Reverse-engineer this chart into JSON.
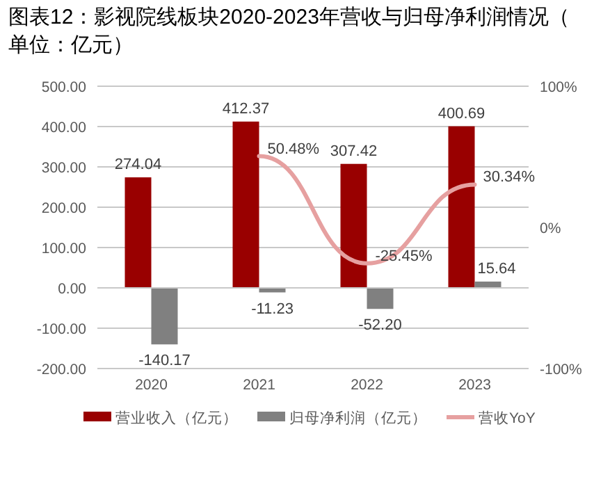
{
  "chart_data": {
    "type": "bar",
    "title": "图表12：影视院线板块2020-2023年营收与归母净利润情况（单位：亿元）",
    "categories": [
      "2020",
      "2021",
      "2022",
      "2023"
    ],
    "series": [
      {
        "name": "营业收入（亿元）",
        "color": "#990000",
        "values": [
          274.04,
          412.37,
          307.42,
          400.69
        ],
        "value_labels": [
          "274.04",
          "412.37",
          "307.42",
          "400.69"
        ]
      },
      {
        "name": "归母净利润（亿元）",
        "color": "#808080",
        "values": [
          -140.17,
          -11.23,
          -52.2,
          15.64
        ],
        "value_labels": [
          "-140.17",
          "-11.23",
          "-52.20",
          "15.64"
        ]
      },
      {
        "name": "营收YoY",
        "type": "line",
        "axis": "y2",
        "color": "#e6a0a0",
        "values": [
          null,
          50.48,
          -25.45,
          30.34
        ],
        "value_labels": [
          null,
          "50.48%",
          "-25.45%",
          "30.34%"
        ]
      }
    ],
    "ylim": [
      -200,
      500
    ],
    "yticks": [
      {
        "value": -200,
        "label": "-200.00"
      },
      {
        "value": -100,
        "label": "-100.00"
      },
      {
        "value": 0,
        "label": "0.00"
      },
      {
        "value": 100,
        "label": "100.00"
      },
      {
        "value": 200,
        "label": "200.00"
      },
      {
        "value": 300,
        "label": "300.00"
      },
      {
        "value": 400,
        "label": "400.00"
      },
      {
        "value": 500,
        "label": "500.00"
      }
    ],
    "y2lim": [
      -100,
      100
    ],
    "y2ticks": [
      {
        "value": -100,
        "label": "-100%"
      },
      {
        "value": 0,
        "label": "0%"
      },
      {
        "value": 100,
        "label": "100%"
      }
    ],
    "grid": "y",
    "legend": "bottom"
  }
}
